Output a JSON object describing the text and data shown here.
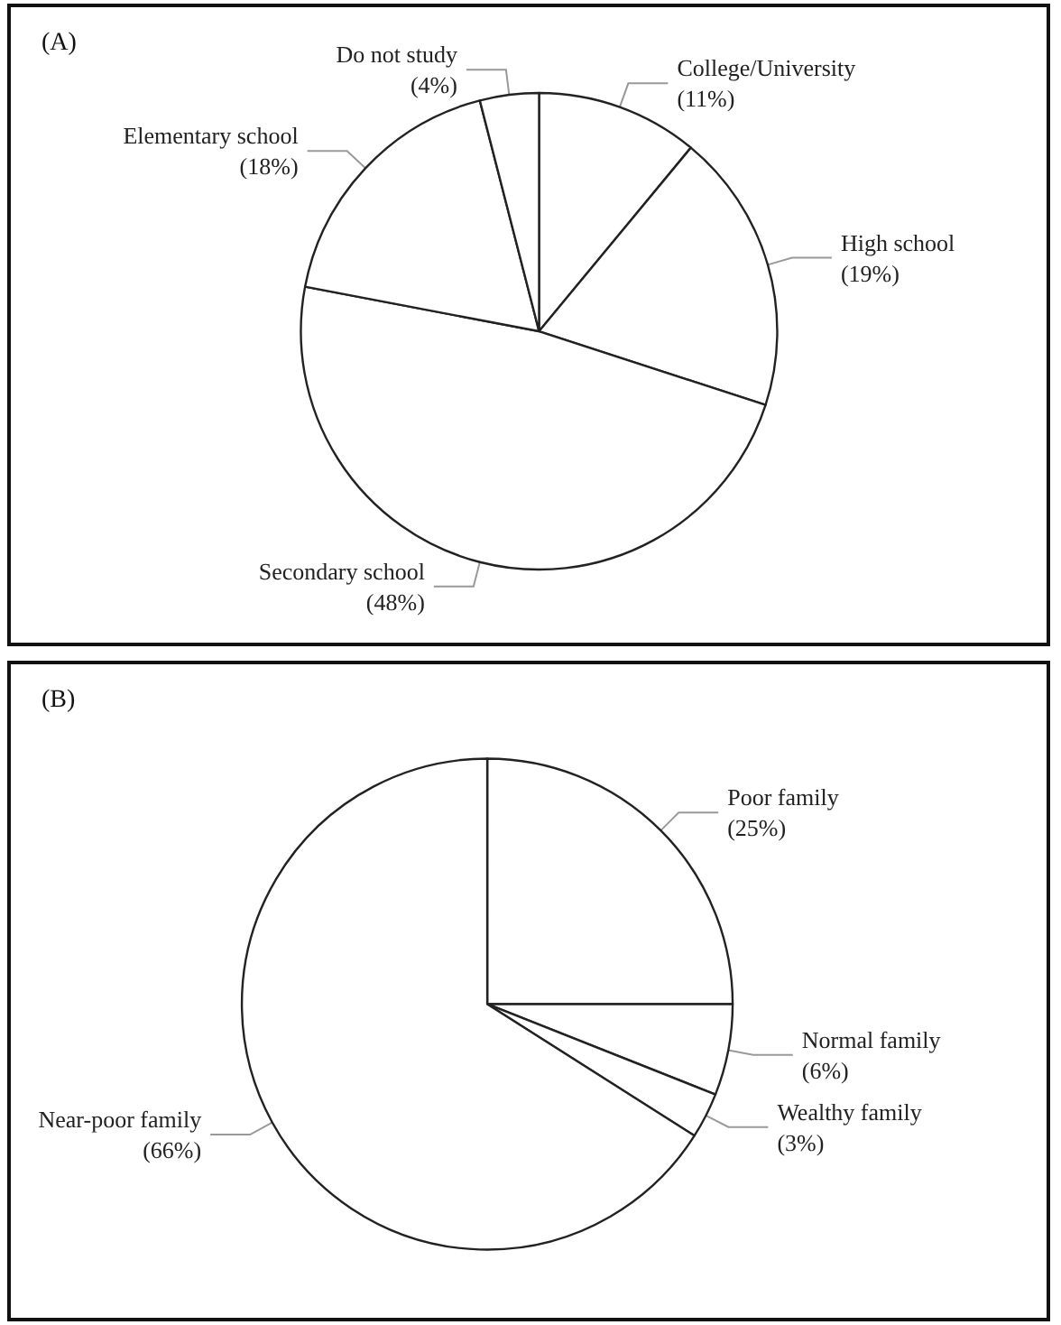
{
  "chart_data": [
    {
      "type": "pie",
      "title": "(A)",
      "categories": [
        "College/University",
        "High school",
        "Secondary school",
        "Elementary school",
        "Do not study"
      ],
      "values": [
        11,
        19,
        48,
        18,
        4
      ],
      "value_labels": [
        "(11%)",
        "(19%)",
        "(48%)",
        "(18%)",
        "(4%)"
      ],
      "colors": [
        "#ffffff",
        "#ffffff",
        "#ffffff",
        "#ffffff",
        "#ffffff"
      ],
      "legend": false
    },
    {
      "type": "pie",
      "title": "(B)",
      "categories": [
        "Poor family",
        "Normal family",
        "Wealthy family",
        "Near-poor family"
      ],
      "values": [
        25,
        6,
        3,
        66
      ],
      "value_labels": [
        "(25%)",
        "(6%)",
        "(3%)",
        "(66%)"
      ],
      "colors": [
        "#ffffff",
        "#ffffff",
        "#ffffff",
        "#ffffff"
      ],
      "legend": false
    }
  ]
}
